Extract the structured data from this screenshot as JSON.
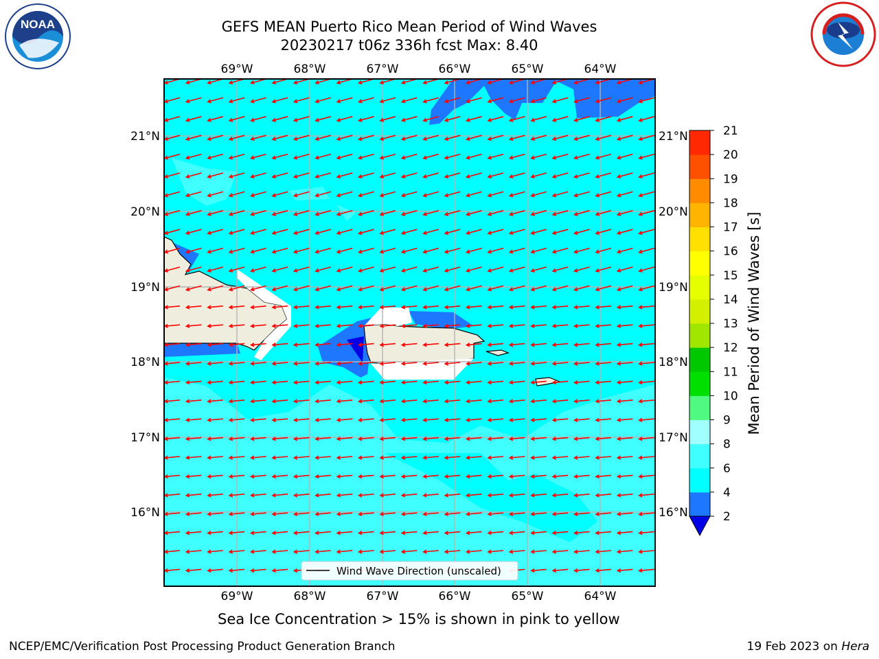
{
  "header": {
    "title_line1": "GEFS MEAN Puerto Rico Mean Period of Wind Waves",
    "title_line2": "20230217 t06z 336h fcst   Max: 8.40"
  },
  "logos": {
    "left": {
      "icon": "noaa-logo",
      "text": "NOAA"
    },
    "right": {
      "icon": "nws-logo",
      "text": "NATIONAL WEATHER SERVICE"
    }
  },
  "map": {
    "lon_labels": [
      "69°W",
      "68°W",
      "67°W",
      "66°W",
      "65°W",
      "64°W"
    ],
    "lat_labels": [
      "21°N",
      "20°N",
      "19°N",
      "18°N",
      "17°N",
      "16°N"
    ],
    "legend_label": "Wind Wave Direction (unscaled)",
    "arrow_color": "#ff0000",
    "land_color": "#efedde"
  },
  "colorbar": {
    "label": "Mean Period of Wind Waves [s]",
    "ticks": [
      "2",
      "4",
      "6",
      "8",
      "9",
      "10",
      "11",
      "12",
      "13",
      "14",
      "15",
      "16",
      "17",
      "18",
      "19",
      "20",
      "21"
    ],
    "colors": [
      "#0000e6",
      "#1e78ff",
      "#00ffff",
      "#40ffff",
      "#a0ffff",
      "#50fa80",
      "#00e000",
      "#00c800",
      "#a0e600",
      "#d2f000",
      "#e6ff00",
      "#ffff00",
      "#ffe000",
      "#ffb400",
      "#ff8c00",
      "#ff5000",
      "#ff2800",
      "#ff0000"
    ]
  },
  "notes": {
    "sea_ice": "Sea Ice Concentration > 15% is shown in pink to yellow",
    "credit": "NCEP/EMC/Verification Post Processing Product Generation Branch",
    "date_prefix": "19 Feb 2023 on ",
    "date_machine": "Hera"
  }
}
